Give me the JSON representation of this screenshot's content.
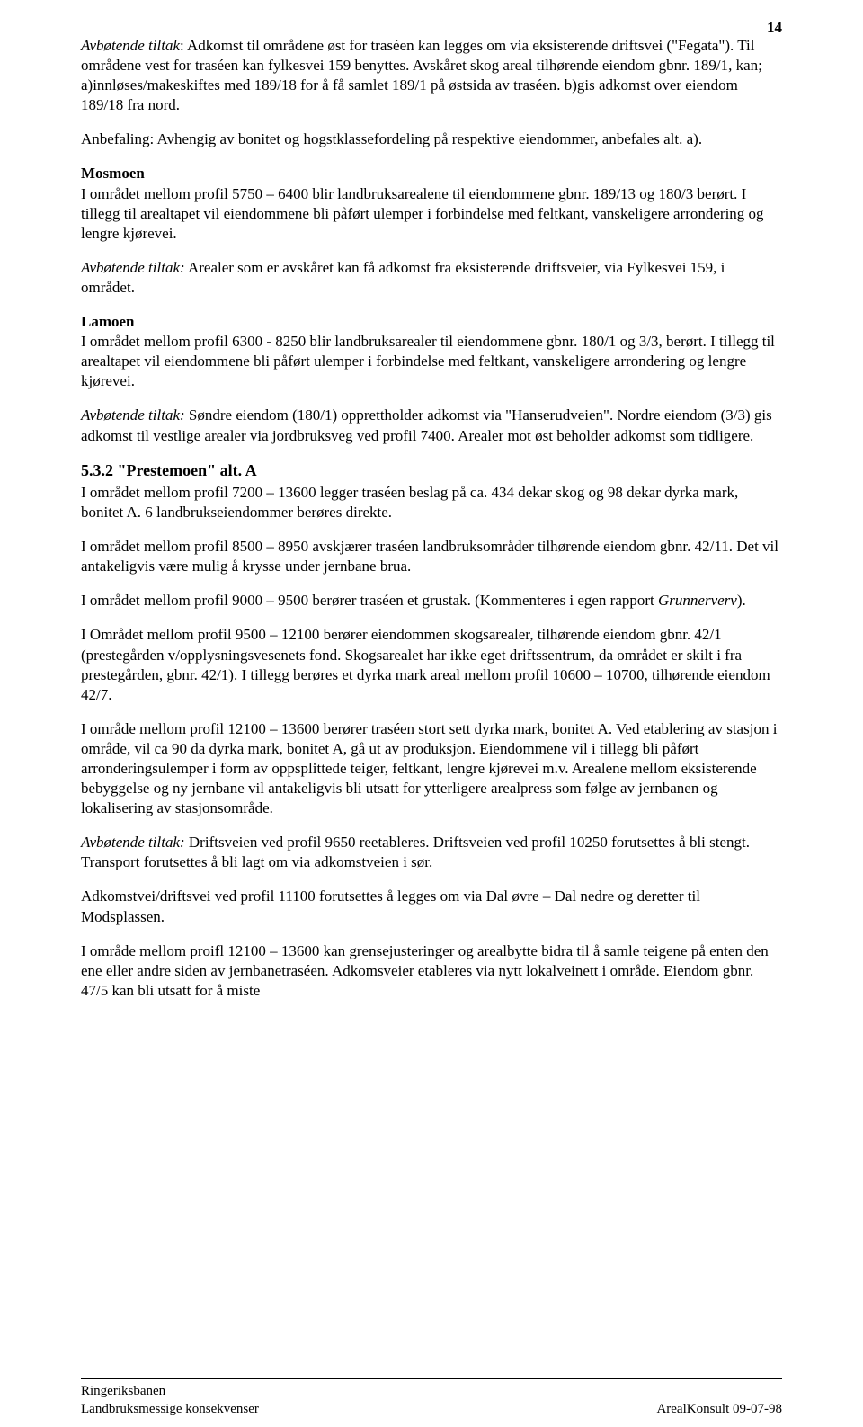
{
  "page": {
    "number": "14",
    "background_color": "#ffffff",
    "text_color": "#000000",
    "font_family": "Times New Roman",
    "body_fontsize_pt": 13,
    "heading_fontsize_pt": 14
  },
  "paragraphs": {
    "p1a": "Avbøtende tiltak",
    "p1b": ": Adkomst til områdene øst for traséen kan legges om via eksisterende driftsvei (\"Fegata\"). Til områdene vest for traséen kan fylkesvei 159 benyttes. Avskåret skog areal tilhørende eiendom gbnr. 189/1, kan; a)innløses/makeskiftes med 189/18 for å få samlet 189/1 på østsida av traséen. b)gis adkomst over eiendom 189/18 fra nord.",
    "p2": "Anbefaling: Avhengig av bonitet og hogstklassefordeling på respektive eiendommer, anbefales alt. a).",
    "h_mosmoen": "Mosmoen",
    "p3": "I området mellom profil 5750 – 6400 blir landbruksarealene til eiendommene gbnr. 189/13 og 180/3 berørt. I tillegg til arealtapet vil eiendommene bli påført ulemper i forbindelse med feltkant, vanskeligere arrondering og lengre kjørevei.",
    "p4a": "Avbøtende tiltak:",
    "p4b": " Arealer som er avskåret kan få adkomst fra eksisterende driftsveier, via Fylkesvei 159, i området.",
    "h_lamoen": "Lamoen",
    "p5": "I området mellom profil 6300 - 8250 blir landbruksarealer til eiendommene gbnr. 180/1 og 3/3, berørt. I tillegg til arealtapet vil eiendommene bli påført ulemper i forbindelse med feltkant, vanskeligere arrondering og lengre kjørevei.",
    "p6a": "Avbøtende tiltak:",
    "p6b": " Søndre eiendom (180/1) opprettholder adkomst via \"Hanserudveien\". Nordre eiendom (3/3) gis adkomst til vestlige arealer via jordbruksveg ved profil 7400. Arealer mot øst beholder adkomst som tidligere.",
    "h_532": "5.3.2 \"Prestemoen\" alt. A",
    "p7": "I området mellom profil 7200 – 13600 legger traséen beslag på ca. 434 dekar skog og 98 dekar dyrka mark, bonitet A. 6 landbrukseiendommer berøres direkte.",
    "p8": "I området mellom profil 8500 – 8950 avskjærer traséen landbruksområder tilhørende eiendom gbnr. 42/11. Det vil antakeligvis være mulig å krysse under jernbane brua.",
    "p9a": "I området mellom profil 9000 – 9500 berører traséen et grustak. (Kommenteres i egen rapport ",
    "p9b": "Grunnerverv",
    "p9c": ").",
    "p10": "I Området mellom profil 9500 – 12100 berører eiendommen skogsarealer, tilhørende eiendom gbnr. 42/1 (prestegården v/opplysningsvesenets fond. Skogsarealet har ikke eget driftssentrum, da området er skilt i fra prestegården, gbnr. 42/1). I tillegg berøres et dyrka mark areal mellom profil 10600 – 10700, tilhørende eiendom 42/7.",
    "p11": "I område mellom profil 12100 – 13600 berører traséen stort sett dyrka mark, bonitet A. Ved etablering av stasjon i område, vil ca 90 da dyrka mark, bonitet A, gå ut av produksjon. Eiendommene vil i tillegg bli påført arronderingsulemper i form av oppsplittede teiger, feltkant, lengre kjørevei m.v. Arealene mellom eksisterende bebyggelse og ny jernbane vil antakeligvis bli utsatt for ytterligere arealpress som følge av jernbanen og lokalisering av stasjonsområde.",
    "p12a": "Avbøtende tiltak:",
    "p12b": " Driftsveien ved profil 9650 reetableres. Driftsveien ved profil 10250 forutsettes å bli stengt. Transport forutsettes å bli lagt om via adkomstveien i sør.",
    "p13": "Adkomstvei/driftsvei ved profil 11100 forutsettes å legges om via Dal øvre – Dal nedre og deretter til Modsplassen.",
    "p14": "I område mellom proifl 12100 – 13600 kan grensejusteringer og arealbytte bidra til å samle teigene på enten den ene eller andre siden av jernbanetraséen. Adkomsveier etableres via nytt lokalveinett i område. Eiendom gbnr. 47/5 kan bli utsatt for å miste"
  },
  "footer": {
    "left_line1": "Ringeriksbanen",
    "left_line2": "Landbruksmessige konsekvenser",
    "right": "ArealKonsult 09-07-98"
  }
}
